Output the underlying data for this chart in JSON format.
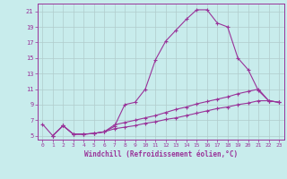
{
  "xlabel": "Windchill (Refroidissement éolien,°C)",
  "xlim": [
    -0.5,
    23.5
  ],
  "ylim": [
    4.5,
    22
  ],
  "xticks": [
    0,
    1,
    2,
    3,
    4,
    5,
    6,
    7,
    8,
    9,
    10,
    11,
    12,
    13,
    14,
    15,
    16,
    17,
    18,
    19,
    20,
    21,
    22,
    23
  ],
  "yticks": [
    5,
    7,
    9,
    11,
    13,
    15,
    17,
    19,
    21
  ],
  "background_color": "#c8ecec",
  "grid_color": "#b0cccc",
  "line_color": "#993399",
  "line1_x": [
    0,
    1,
    2,
    3,
    4,
    5,
    6,
    7,
    8,
    9,
    10,
    11,
    12,
    13,
    14,
    15,
    16,
    17,
    18,
    19,
    20,
    21,
    22,
    23
  ],
  "line1_y": [
    6.5,
    5.0,
    6.3,
    5.2,
    5.2,
    5.3,
    5.5,
    6.2,
    9.0,
    9.3,
    11.0,
    14.8,
    17.2,
    18.6,
    20.0,
    21.2,
    21.2,
    19.5,
    19.0,
    15.0,
    13.5,
    10.8,
    9.5,
    9.3
  ],
  "line2_x": [
    1,
    2,
    3,
    4,
    5,
    6,
    7,
    8,
    9,
    10,
    11,
    12,
    13,
    14,
    15,
    16,
    17,
    18,
    19,
    20,
    21,
    22,
    23
  ],
  "line2_y": [
    5.0,
    6.3,
    5.2,
    5.2,
    5.3,
    5.5,
    6.4,
    6.7,
    7.0,
    7.3,
    7.6,
    8.0,
    8.4,
    8.7,
    9.1,
    9.4,
    9.7,
    10.0,
    10.4,
    10.7,
    11.0,
    9.5,
    9.3
  ],
  "line3_x": [
    1,
    2,
    3,
    4,
    5,
    6,
    7,
    8,
    9,
    10,
    11,
    12,
    13,
    14,
    15,
    16,
    17,
    18,
    19,
    20,
    21,
    22,
    23
  ],
  "line3_y": [
    5.0,
    6.3,
    5.2,
    5.2,
    5.3,
    5.5,
    5.9,
    6.1,
    6.3,
    6.6,
    6.8,
    7.1,
    7.3,
    7.6,
    7.9,
    8.2,
    8.5,
    8.7,
    9.0,
    9.2,
    9.5,
    9.5,
    9.3
  ]
}
